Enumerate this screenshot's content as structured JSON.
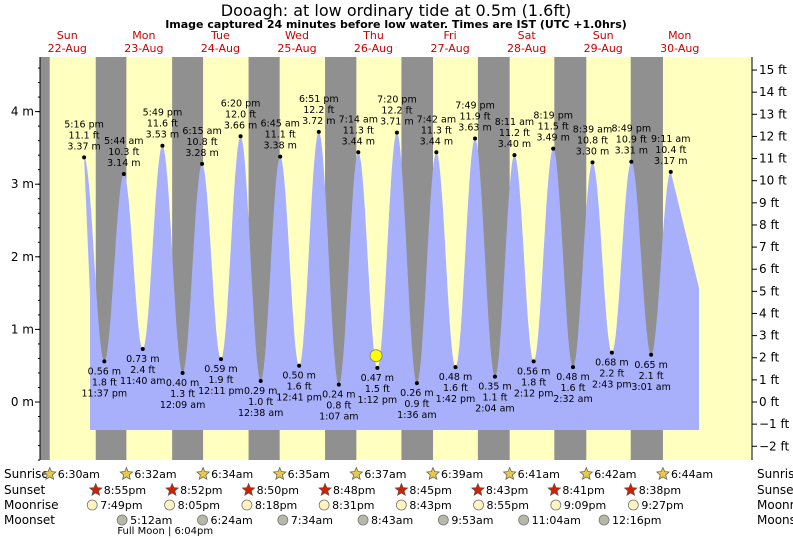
{
  "chart_data": {
    "type": "area",
    "title": "Dooagh: at low  ordinary tide at 0.5m (1.6ft)",
    "subtitle": "Image captured 24 minutes before low water. Times are IST (UTC +1.0hrs)",
    "days": [
      {
        "dow": "Sun",
        "date": "22-Aug"
      },
      {
        "dow": "Mon",
        "date": "23-Aug"
      },
      {
        "dow": "Tue",
        "date": "24-Aug"
      },
      {
        "dow": "Wed",
        "date": "25-Aug"
      },
      {
        "dow": "Thu",
        "date": "26-Aug"
      },
      {
        "dow": "Fri",
        "date": "27-Aug"
      },
      {
        "dow": "Sat",
        "date": "28-Aug"
      },
      {
        "dow": "Sun",
        "date": "29-Aug"
      },
      {
        "dow": "Mon",
        "date": "30-Aug"
      }
    ],
    "ylim_m": [
      -0.9,
      4.85
    ],
    "y_ticks_m": [
      {
        "v": 4,
        "label": "4 m"
      },
      {
        "v": 3,
        "label": "3 m"
      },
      {
        "v": 2,
        "label": "2 m"
      },
      {
        "v": 1,
        "label": "1 m"
      },
      {
        "v": 0,
        "label": "0 m"
      }
    ],
    "y_ticks_ft": [
      "15 ft",
      "14 ft",
      "13 ft",
      "12 ft",
      "11 ft",
      "10 ft",
      "9 ft",
      "8 ft",
      "7 ft",
      "6 ft",
      "5 ft",
      "4 ft",
      "3 ft",
      "2 ft",
      "1 ft",
      "0 ft",
      "−1 ft",
      "−2 ft"
    ],
    "series": [
      {
        "type": "high",
        "time": "5:16 pm",
        "ft": "11.1 ft",
        "m": "3.37 m",
        "h": 3.37,
        "hour": 17.27
      },
      {
        "type": "low",
        "time": "11:37 pm",
        "ft": "1.8 ft",
        "m": "0.56 m",
        "h": 0.56,
        "hour": 23.62
      },
      {
        "type": "high",
        "time": "5:44 am",
        "ft": "10.3 ft",
        "m": "3.14 m",
        "h": 3.14,
        "hour": 29.73
      },
      {
        "type": "low",
        "time": "11:40 am",
        "ft": "2.4 ft",
        "m": "0.73 m",
        "h": 0.73,
        "hour": 35.67
      },
      {
        "type": "high",
        "time": "5:49 pm",
        "ft": "11.6 ft",
        "m": "3.53 m",
        "h": 3.53,
        "hour": 41.82
      },
      {
        "type": "low",
        "time": "12:09 am",
        "ft": "1.3 ft",
        "m": "0.40 m",
        "h": 0.4,
        "hour": 48.15
      },
      {
        "type": "high",
        "time": "6:15 am",
        "ft": "10.8 ft",
        "m": "3.28 m",
        "h": 3.28,
        "hour": 54.25
      },
      {
        "type": "low",
        "time": "12:11 pm",
        "ft": "1.9 ft",
        "m": "0.59 m",
        "h": 0.59,
        "hour": 60.18
      },
      {
        "type": "high",
        "time": "6:20 pm",
        "ft": "12.0 ft",
        "m": "3.66 m",
        "h": 3.66,
        "hour": 66.33
      },
      {
        "type": "low",
        "time": "12:38 am",
        "ft": "1.0 ft",
        "m": "0.29 m",
        "h": 0.29,
        "hour": 72.63
      },
      {
        "type": "high",
        "time": "6:45 am",
        "ft": "11.1 ft",
        "m": "3.38 m",
        "h": 3.38,
        "hour": 78.75
      },
      {
        "type": "low",
        "time": "12:41 pm",
        "ft": "1.6 ft",
        "m": "0.50 m",
        "h": 0.5,
        "hour": 84.68
      },
      {
        "type": "high",
        "time": "6:51 pm",
        "ft": "12.2 ft",
        "m": "3.72 m",
        "h": 3.72,
        "hour": 90.85
      },
      {
        "type": "low",
        "time": "1:07 am",
        "ft": "0.8 ft",
        "m": "0.24 m",
        "h": 0.24,
        "hour": 97.12
      },
      {
        "type": "high",
        "time": "7:14 am",
        "ft": "11.3 ft",
        "m": "3.44 m",
        "h": 3.44,
        "hour": 103.23
      },
      {
        "type": "low",
        "time": "1:12 pm",
        "ft": "1.5 ft",
        "m": "0.47 m",
        "h": 0.47,
        "hour": 109.2
      },
      {
        "type": "high",
        "time": "7:20 pm",
        "ft": "12.2 ft",
        "m": "3.71 m",
        "h": 3.71,
        "hour": 115.33
      },
      {
        "type": "low",
        "time": "1:36 am",
        "ft": "0.9 ft",
        "m": "0.26 m",
        "h": 0.26,
        "hour": 121.6
      },
      {
        "type": "high",
        "time": "7:42 am",
        "ft": "11.3 ft",
        "m": "3.44 m",
        "h": 3.44,
        "hour": 127.7
      },
      {
        "type": "low",
        "time": "1:42 pm",
        "ft": "1.6 ft",
        "m": "0.48 m",
        "h": 0.48,
        "hour": 133.7
      },
      {
        "type": "high",
        "time": "7:49 pm",
        "ft": "11.9 ft",
        "m": "3.63 m",
        "h": 3.63,
        "hour": 139.82
      },
      {
        "type": "low",
        "time": "2:04 am",
        "ft": "1.1 ft",
        "m": "0.35 m",
        "h": 0.35,
        "hour": 146.07
      },
      {
        "type": "high",
        "time": "8:11 am",
        "ft": "11.2 ft",
        "m": "3.40 m",
        "h": 3.4,
        "hour": 152.18
      },
      {
        "type": "low",
        "time": "2:12 pm",
        "ft": "1.8 ft",
        "m": "0.56 m",
        "h": 0.56,
        "hour": 158.2
      },
      {
        "type": "high",
        "time": "8:19 pm",
        "ft": "11.5 ft",
        "m": "3.49 m",
        "h": 3.49,
        "hour": 164.32
      },
      {
        "type": "low",
        "time": "2:32 am",
        "ft": "1.6 ft",
        "m": "0.48 m",
        "h": 0.48,
        "hour": 170.53
      },
      {
        "type": "high",
        "time": "8:39 am",
        "ft": "10.8 ft",
        "m": "3.30 m",
        "h": 3.3,
        "hour": 176.65
      },
      {
        "type": "low",
        "time": "2:43 pm",
        "ft": "2.2 ft",
        "m": "0.68 m",
        "h": 0.68,
        "hour": 182.72
      },
      {
        "type": "high",
        "time": "8:49 pm",
        "ft": "10.9 ft",
        "m": "3.31 m",
        "h": 3.31,
        "hour": 188.82
      },
      {
        "type": "low",
        "time": "3:01 am",
        "ft": "2.1 ft",
        "m": "0.65 m",
        "h": 0.65,
        "hour": 195.02
      },
      {
        "type": "high",
        "time": "9:11 am",
        "ft": "10.4 ft",
        "m": "3.17 m",
        "h": 3.17,
        "hour": 201.18
      }
    ],
    "current": {
      "hour": 108.8,
      "h": 0.5
    },
    "sun_moon": {
      "labels": {
        "sunrise": "Sunrise",
        "sunset": "Sunset",
        "moonrise": "Moonrise",
        "moonset": "Moonset"
      },
      "sunrise": [
        {
          "time": "6:30am",
          "hour": 6.5
        },
        {
          "time": "6:32am",
          "hour": 30.53
        },
        {
          "time": "6:34am",
          "hour": 54.57
        },
        {
          "time": "6:35am",
          "hour": 78.58
        },
        {
          "time": "6:37am",
          "hour": 102.62
        },
        {
          "time": "6:39am",
          "hour": 126.65
        },
        {
          "time": "6:41am",
          "hour": 150.68
        },
        {
          "time": "6:42am",
          "hour": 174.7
        },
        {
          "time": "6:44am",
          "hour": 198.73
        }
      ],
      "sunset": [
        {
          "time": "8:55pm",
          "hour": 20.92
        },
        {
          "time": "8:52pm",
          "hour": 44.87
        },
        {
          "time": "8:50pm",
          "hour": 68.83
        },
        {
          "time": "8:48pm",
          "hour": 92.8
        },
        {
          "time": "8:45pm",
          "hour": 116.75
        },
        {
          "time": "8:43pm",
          "hour": 140.72
        },
        {
          "time": "8:41pm",
          "hour": 164.68
        },
        {
          "time": "8:38pm",
          "hour": 188.63
        }
      ],
      "moonrise": [
        {
          "time": "7:49pm",
          "hour": 19.82
        },
        {
          "time": "8:05pm",
          "hour": 44.08
        },
        {
          "time": "8:18pm",
          "hour": 68.3
        },
        {
          "time": "8:31pm",
          "hour": 92.52
        },
        {
          "time": "8:43pm",
          "hour": 116.72
        },
        {
          "time": "8:55pm",
          "hour": 140.92
        },
        {
          "time": "9:09pm",
          "hour": 165.15
        },
        {
          "time": "9:27pm",
          "hour": 189.45
        }
      ],
      "moonset": [
        {
          "time": "5:12am",
          "hour": 29.2
        },
        {
          "time": "6:24am",
          "hour": 54.4
        },
        {
          "time": "7:34am",
          "hour": 79.57
        },
        {
          "time": "8:43am",
          "hour": 104.72
        },
        {
          "time": "9:53am",
          "hour": 129.88
        },
        {
          "time": "11:04am",
          "hour": 155.07
        },
        {
          "time": "12:16pm",
          "hour": 180.27
        }
      ],
      "full_moon": {
        "text": "Full Moon | 6:04pm",
        "hour": 42.07
      }
    }
  },
  "colors": {
    "day": "#ffffc0",
    "night": "#909090",
    "water": "#a8b0fc",
    "sun_star": "#e8c850",
    "sunset_star": "#cc2200",
    "moon_rise": "#fff4c0",
    "moon_set": "#b8b8a8",
    "day_label": "#cc0000",
    "marker": "#ffff00"
  }
}
